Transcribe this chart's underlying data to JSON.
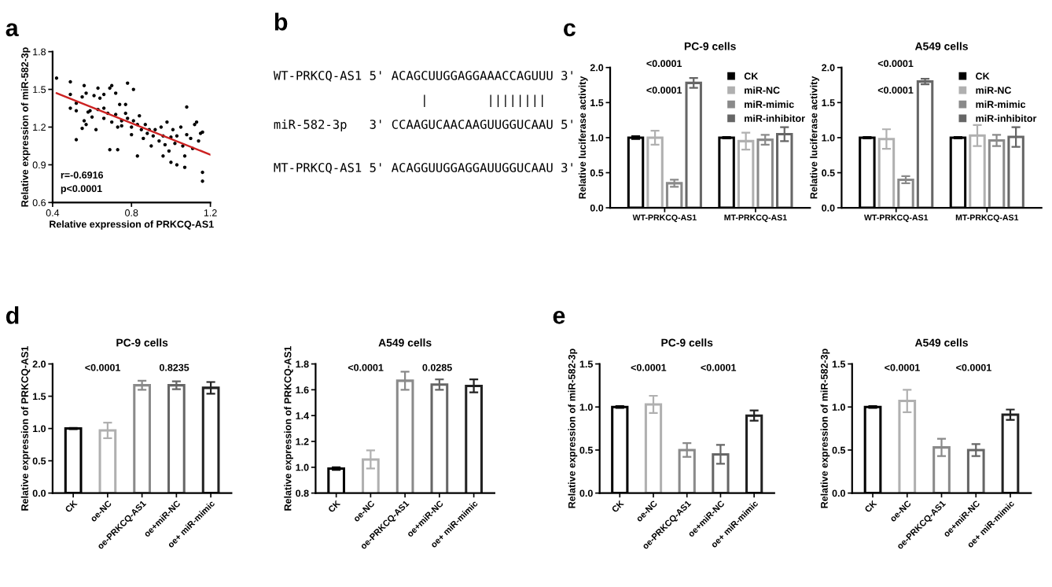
{
  "chart_data": [
    {
      "type": "scatter",
      "xlabel": "Relative expression of PRKCQ-AS1",
      "ylabel": "Relative expression of miR-582-3p",
      "xlim": [
        0.4,
        1.2
      ],
      "xticks": [
        0.4,
        0.8,
        1.2
      ],
      "ylim": [
        0.6,
        1.8
      ],
      "yticks": [
        0.6,
        0.9,
        1.2,
        1.5,
        1.8
      ],
      "grid": false,
      "annotations": [
        "a",
        "r=-0.6916",
        "p<0.0001"
      ],
      "series": [
        {
          "type": "scatter",
          "marker": "circle",
          "color": "#000000",
          "x": [
            0.42,
            0.49,
            0.49,
            0.49,
            0.52,
            0.52,
            0.55,
            0.56,
            0.57,
            0.56,
            0.57,
            0.52,
            0.59,
            0.6,
            0.61,
            0.63,
            0.64,
            0.63,
            0.66,
            0.66,
            0.68,
            0.69,
            0.7,
            0.7,
            0.72,
            0.73,
            0.74,
            0.75,
            0.77,
            0.77,
            0.69,
            0.73,
            0.78,
            0.8,
            0.8,
            0.81,
            0.83,
            0.83,
            0.78,
            0.81,
            0.84,
            0.85,
            0.86,
            0.87,
            0.88,
            0.89,
            0.91,
            0.92,
            0.94,
            0.95,
            0.96,
            0.97,
            0.99,
            0.96,
            1.0,
            1.01,
            1.02,
            1.03,
            1.05,
            1.06,
            1.07,
            1.08,
            1.1,
            1.11,
            1.12,
            1.14,
            1.15,
            1.07,
            1.03,
            1.0,
            1.08,
            1.13,
            1.16,
            1.16,
            1.16,
            0.62,
            0.58,
            0.55,
            0.75,
            0.9,
            0.98,
            0.66,
            0.72
          ],
          "values": [
            1.59,
            1.56,
            1.46,
            1.35,
            1.33,
            1.39,
            1.44,
            1.53,
            1.47,
            1.25,
            1.22,
            1.1,
            1.33,
            1.28,
            1.45,
            1.51,
            1.43,
            1.34,
            1.35,
            1.27,
            1.31,
            1.51,
            1.53,
            1.24,
            1.3,
            1.2,
            1.38,
            1.25,
            1.38,
            1.31,
            1.02,
            1.02,
            1.27,
            1.2,
            1.14,
            1.25,
            1.22,
            0.97,
            1.55,
            1.5,
            1.29,
            1.18,
            1.11,
            1.22,
            1.15,
            1.18,
            1.13,
            1.18,
            1.09,
            1.2,
            1.13,
            1.06,
            1.01,
            0.97,
            1.12,
            1.18,
            1.07,
            1.13,
            1.2,
            1.05,
            0.97,
            1.14,
            1.11,
            1.03,
            1.22,
            1.09,
            1.15,
            0.88,
            0.9,
            0.92,
            1.36,
            1.24,
            1.16,
            0.84,
            0.77,
            1.18,
            1.32,
            1.19,
            1.21,
            1.05,
            1.24,
            1.46,
            1.47
          ]
        },
        {
          "type": "line",
          "marker": "none",
          "color": "#cc2222",
          "x": [
            0.42,
            1.2
          ],
          "values": [
            1.47,
            0.98
          ]
        }
      ]
    },
    {
      "type": "other",
      "annotations": [
        "b",
        "WT-PRKCQ-AS1 5' ACAGCUUGGAGGAAACCAGUUU 3'",
        "                    |        ||||||||",
        "miR-582-3p   3' CCAAGUCAACAAGUUGGUCAAU 5'",
        "MT-PRKCQ-AS1 5' ACAGGUUGGAGGAUUGGUCAAU 3'"
      ]
    },
    {
      "type": "bar",
      "title": "PC-9 cells",
      "ylabel": "Relative luciferase activity",
      "categories": [
        "WT-PRKCQ-AS1",
        "MT-PRKCQ-AS1"
      ],
      "ylim": [
        0,
        2
      ],
      "yticks": [
        {
          "value": 0,
          "label": "0.0"
        },
        0.5,
        {
          "value": 1,
          "label": "1.0"
        },
        1.5,
        {
          "value": 2,
          "label": "2.0"
        }
      ],
      "grid": false,
      "legend": "top right",
      "annotations": [
        "c",
        "<0.0001",
        "<0.0001"
      ],
      "series": [
        {
          "name": "CK",
          "color": "#000000",
          "values": [
            1.0,
            1.0
          ],
          "errors": [
            0.02,
            0.01
          ]
        },
        {
          "name": "miR-NC",
          "color": "#b0b0b0",
          "values": [
            1.0,
            0.95
          ],
          "errors": [
            0.1,
            0.12
          ]
        },
        {
          "name": "miR-mimic",
          "color": "#8a8a8a",
          "values": [
            0.35,
            0.97
          ],
          "errors": [
            0.05,
            0.07
          ]
        },
        {
          "name": "miR-inhibitor",
          "color": "#666666",
          "values": [
            1.78,
            1.05
          ],
          "errors": [
            0.07,
            0.1
          ]
        }
      ]
    },
    {
      "type": "bar",
      "title": "A549 cells",
      "ylabel": "Relative luciferase activity",
      "categories": [
        "WT-PRKCQ-AS1",
        "MT-PRKCQ-AS1"
      ],
      "ylim": [
        0,
        2
      ],
      "yticks": [
        {
          "value": 0,
          "label": "0.0"
        },
        0.5,
        {
          "value": 1,
          "label": "1.0"
        },
        1.5,
        {
          "value": 2,
          "label": "2.0"
        }
      ],
      "grid": false,
      "legend": "top right",
      "annotations": [
        "<0.0001",
        "<0.0001"
      ],
      "series": [
        {
          "name": "CK",
          "color": "#000000",
          "values": [
            1.0,
            1.0
          ],
          "errors": [
            0.01,
            0.01
          ]
        },
        {
          "name": "miR-NC",
          "color": "#b0b0b0",
          "values": [
            0.98,
            1.03
          ],
          "errors": [
            0.14,
            0.15
          ]
        },
        {
          "name": "miR-mimic",
          "color": "#8a8a8a",
          "values": [
            0.4,
            0.96
          ],
          "errors": [
            0.05,
            0.08
          ]
        },
        {
          "name": "miR-inhibitor",
          "color": "#666666",
          "values": [
            1.8,
            1.01
          ],
          "errors": [
            0.04,
            0.14
          ]
        }
      ]
    },
    {
      "type": "bar",
      "title": "PC-9 cells",
      "ylabel": "Relative expression of PRKCQ-AS1",
      "categories": [
        "CK",
        "oe-NC",
        "oe-PRKCQ-AS1",
        "oe+miR-NC",
        "oe+ miR-mimic"
      ],
      "ylim": [
        0,
        2
      ],
      "yticks": [
        {
          "value": 0,
          "label": "0.0"
        },
        0.5,
        {
          "value": 1,
          "label": "1.0"
        },
        1.5,
        {
          "value": 2,
          "label": "2.0"
        }
      ],
      "grid": false,
      "values": [
        1.0,
        0.97,
        1.67,
        1.67,
        1.63
      ],
      "errors": [
        0.01,
        0.12,
        0.07,
        0.06,
        0.09
      ],
      "colors": [
        "#000000",
        "#b0b0b0",
        "#8a8a8a",
        "#666666",
        "#222222"
      ],
      "annotations": [
        "d",
        "<0.0001",
        "0.8235"
      ]
    },
    {
      "type": "bar",
      "title": "A549 cells",
      "ylabel": "Relative expression of PRKCQ-AS1",
      "categories": [
        "CK",
        "oe-NC",
        "oe-PRKCQ-AS1",
        "oe+miR-NC",
        "oe+ miR-mimic"
      ],
      "ylim": [
        0.8,
        1.8
      ],
      "yticks": [
        0.8,
        {
          "value": 1,
          "label": "1.0"
        },
        1.2,
        1.4,
        1.6,
        1.8
      ],
      "grid": false,
      "values": [
        0.99,
        1.06,
        1.67,
        1.64,
        1.63
      ],
      "errors": [
        0.01,
        0.07,
        0.07,
        0.04,
        0.05
      ],
      "colors": [
        "#000000",
        "#b0b0b0",
        "#8a8a8a",
        "#666666",
        "#222222"
      ],
      "annotations": [
        "<0.0001",
        "0.0285"
      ]
    },
    {
      "type": "bar",
      "title": "PC-9 cells",
      "ylabel": "Relative expression of miR-582-3p",
      "categories": [
        "CK",
        "oe-NC",
        "oe-PRKCQ-AS1",
        "oe+miR-NC",
        "oe+ miR-mimic"
      ],
      "ylim": [
        0,
        1.5
      ],
      "yticks": [
        {
          "value": 0,
          "label": "0.0"
        },
        0.5,
        {
          "value": 1,
          "label": "1.0"
        },
        1.5
      ],
      "grid": false,
      "values": [
        1.0,
        1.03,
        0.5,
        0.45,
        0.9
      ],
      "errors": [
        0.01,
        0.1,
        0.08,
        0.11,
        0.06
      ],
      "colors": [
        "#000000",
        "#b0b0b0",
        "#8a8a8a",
        "#666666",
        "#222222"
      ],
      "annotations": [
        "e",
        "<0.0001",
        "<0.0001"
      ]
    },
    {
      "type": "bar",
      "title": "A549 cells",
      "ylabel": "Relative expression of miR-582-3p",
      "categories": [
        "CK",
        "oe-NC",
        "oe-PRKCQ-AS1",
        "oe+miR-NC",
        "oe+ miR-mimic"
      ],
      "ylim": [
        0,
        1.5
      ],
      "yticks": [
        {
          "value": 0,
          "label": "0.0"
        },
        0.5,
        {
          "value": 1,
          "label": "1.0"
        },
        1.5
      ],
      "grid": false,
      "values": [
        1.0,
        1.07,
        0.53,
        0.5,
        0.91
      ],
      "errors": [
        0.01,
        0.13,
        0.1,
        0.07,
        0.06
      ],
      "colors": [
        "#000000",
        "#b0b0b0",
        "#8a8a8a",
        "#666666",
        "#222222"
      ],
      "annotations": [
        "<0.0001",
        "<0.0001"
      ]
    }
  ]
}
